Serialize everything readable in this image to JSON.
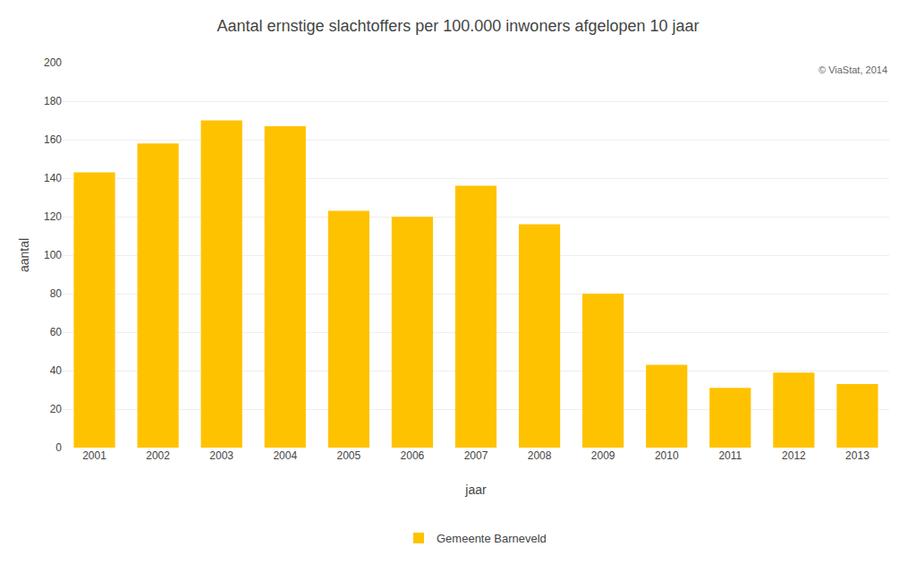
{
  "chart_data": {
    "type": "bar",
    "title": "Aantal ernstige slachtoffers per 100.000 inwoners afgelopen 10 jaar",
    "xlabel": "jaar",
    "ylabel": "aantal",
    "categories": [
      "2001",
      "2002",
      "2003",
      "2004",
      "2005",
      "2006",
      "2007",
      "2008",
      "2009",
      "2010",
      "2011",
      "2012",
      "2013"
    ],
    "series": [
      {
        "name": "Gemeente Barneveld",
        "color": "#FFC200",
        "values": [
          143,
          158,
          170,
          167,
          123,
          120,
          136,
          116,
          80,
          43,
          31,
          39,
          33
        ]
      }
    ],
    "ylim": [
      0,
      200
    ],
    "yticks": [
      0,
      20,
      40,
      60,
      80,
      100,
      120,
      140,
      160,
      180,
      200
    ],
    "grid": true,
    "legend": "bottom",
    "annotations": [
      "© ViaStat, 2014"
    ]
  }
}
